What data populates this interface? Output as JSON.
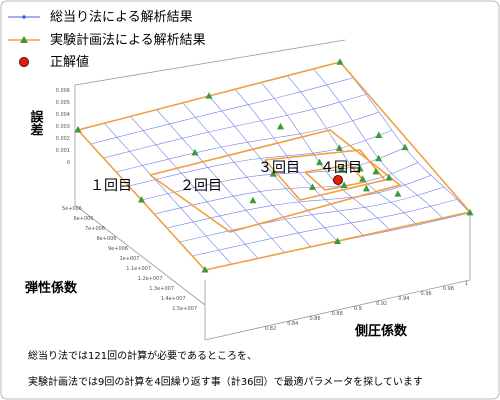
{
  "legend": [
    {
      "label": "総当り法による解析結果"
    },
    {
      "label": "実験計画法による解析結果"
    },
    {
      "label": "正解値"
    }
  ],
  "axes": {
    "z_label": "誤差",
    "x_label": "弾性係数",
    "y_label": "側圧係数",
    "z_ticks": [
      "0.006",
      "0.005",
      "0.004",
      "0.003",
      "0.002",
      "0.001",
      "0"
    ],
    "x_ticks": [
      "5e+006",
      "6e+006",
      "7e+006",
      "8e+006",
      "9e+006",
      "1e+007",
      "1.1e+007",
      "1.2e+007",
      "1.3e+007",
      "1.4e+007",
      "1.5e+007"
    ],
    "y_ticks": [
      "0.82",
      "0.84",
      "0.86",
      "0.88",
      "0.9",
      "0.92",
      "0.94",
      "0.96",
      "0.98",
      "1"
    ]
  },
  "annotations": [
    "１回目",
    "２回目",
    "３回目",
    "４回目"
  ],
  "caption": [
    "総当り法では121回の計算が必要であるところを、",
    "実験計画法では9回の計算を4回繰り返す事（計36回）で最適パラメータを探しています"
  ]
}
